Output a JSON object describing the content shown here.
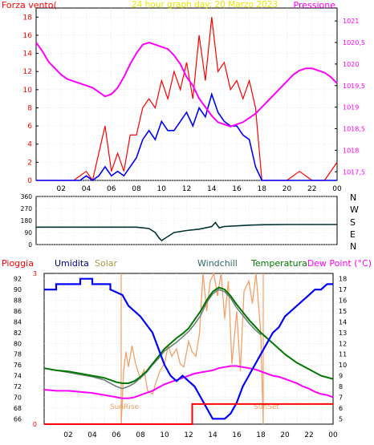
{
  "chart_data": [
    {
      "type": "line",
      "title": "24 hour graph day:  20 Marzo 2023",
      "left_axis_label": "Forza vento(",
      "right_axis_label": "Pressione",
      "x_ticks": [
        "02",
        "04",
        "06",
        "08",
        "10",
        "12",
        "14",
        "16",
        "18",
        "20",
        "22",
        "00"
      ],
      "y_left_ticks": [
        "0",
        "2",
        "4",
        "6",
        "8",
        "10",
        "12",
        "14",
        "16",
        "18"
      ],
      "y_left_range": [
        0,
        19
      ],
      "y_right_ticks": [
        "1017,5",
        "1018",
        "1018,5",
        "1019",
        "1019,5",
        "1020",
        "1020,5",
        "1021"
      ],
      "y_right_range": [
        1017.3,
        1021.3
      ],
      "colors": {
        "gust": "#ff0000",
        "wind": "#0000ff",
        "pressure": "#ff00ff"
      },
      "series": [
        {
          "axis": "right",
          "x": [
            0,
            0.5,
            1,
            1.5,
            2,
            2.5,
            3,
            3.5,
            4,
            4.5,
            5,
            5.5,
            6,
            6.5,
            7,
            7.5,
            8,
            8.5,
            9,
            9.5,
            10,
            10.5,
            11,
            11.5,
            12,
            12.5,
            13,
            13.5,
            14,
            14.5,
            15,
            15.5,
            16,
            16.5,
            17,
            17.5,
            18,
            18.5,
            19,
            19.5,
            20,
            20.5,
            21,
            21.5,
            22,
            22.5,
            23,
            23.5,
            24
          ],
          "y": [
            1020.5,
            1020.3,
            1020.05,
            1019.9,
            1019.75,
            1019.65,
            1019.6,
            1019.55,
            1019.5,
            1019.45,
            1019.35,
            1019.25,
            1019.3,
            1019.45,
            1019.7,
            1020.0,
            1020.25,
            1020.45,
            1020.5,
            1020.45,
            1020.4,
            1020.35,
            1020.2,
            1020.0,
            1019.7,
            1019.5,
            1019.2,
            1019.0,
            1018.8,
            1018.65,
            1018.6,
            1018.55,
            1018.6,
            1018.65,
            1018.75,
            1018.85,
            1019.0,
            1019.15,
            1019.3,
            1019.45,
            1019.6,
            1019.75,
            1019.85,
            1019.9,
            1019.9,
            1019.85,
            1019.8,
            1019.7,
            1019.55
          ]
        },
        {
          "axis": "left",
          "x": [
            0,
            1,
            2,
            3,
            3.5,
            4,
            4.5,
            5,
            5.5,
            6,
            6.5,
            7,
            7.5,
            8,
            8.5,
            9,
            9.5,
            10,
            10.5,
            11,
            11.5,
            12,
            12.5,
            13,
            13.5,
            14,
            14.5,
            15,
            15.5,
            16,
            16.5,
            17,
            17.5,
            18,
            19,
            20,
            21,
            22,
            23,
            24
          ],
          "y": [
            0,
            0,
            0,
            0,
            0,
            0.5,
            0,
            0.5,
            1.5,
            0.5,
            1,
            0.5,
            1.5,
            2.5,
            4.5,
            5.5,
            4.5,
            6.5,
            5.5,
            5.5,
            6.5,
            7.5,
            6,
            8,
            7,
            9.5,
            7.5,
            6.5,
            6,
            6,
            5,
            4.5,
            1.5,
            0,
            0,
            0,
            0,
            0,
            0,
            0
          ]
        },
        {
          "axis": "left",
          "x": [
            0,
            1,
            2,
            3,
            4,
            4.5,
            5,
            5.5,
            6,
            6.5,
            7,
            7.5,
            8,
            8.5,
            9,
            9.5,
            10,
            10.5,
            11,
            11.5,
            12,
            12.5,
            13,
            13.5,
            14,
            14.5,
            15,
            15.5,
            16,
            16.5,
            17,
            17.5,
            18,
            19,
            20,
            21,
            22,
            23,
            24
          ],
          "y": [
            0,
            0,
            0,
            0,
            1,
            0,
            3,
            6,
            1,
            3,
            1,
            5,
            5,
            8,
            9,
            8,
            11,
            9,
            12,
            10,
            13,
            9,
            16,
            11,
            18,
            12,
            13,
            10,
            11,
            9,
            11,
            8,
            0,
            0,
            0,
            1,
            0,
            0,
            2
          ]
        }
      ]
    },
    {
      "type": "line",
      "y_left_ticks": [
        "0",
        "90",
        "180",
        "270",
        "360"
      ],
      "y_left_range": [
        0,
        360
      ],
      "direction_labels": [
        "N",
        "W",
        "S",
        "E",
        "N"
      ],
      "colors": {
        "direction": "#003333"
      },
      "series": [
        {
          "x": [
            0,
            2,
            4,
            6,
            8,
            9,
            9.5,
            9.8,
            10,
            10.5,
            11,
            12,
            13,
            13.5,
            14,
            14.3,
            14.6,
            15,
            16,
            17,
            18,
            20,
            22,
            24
          ],
          "y": [
            130,
            130,
            130,
            130,
            130,
            120,
            90,
            50,
            30,
            60,
            90,
            105,
            115,
            125,
            135,
            165,
            125,
            135,
            140,
            145,
            148,
            150,
            150,
            150
          ]
        }
      ]
    },
    {
      "type": "line",
      "legend": [
        "Pioggia",
        "Umidita",
        "Solar",
        "Windchill",
        "Temperatura",
        "Dew Point (°C)"
      ],
      "y_left_ticks": [
        "66",
        "68",
        "70",
        "72",
        "74",
        "76",
        "78",
        "80",
        "82",
        "84",
        "86",
        "88",
        "90",
        "92"
      ],
      "y_left_range": [
        65,
        93
      ],
      "y_right_ticks": [
        "5",
        "6",
        "7",
        "8",
        "9",
        "10",
        "11",
        "12",
        "13",
        "14",
        "15",
        "16",
        "17",
        "18"
      ],
      "y_right_range": [
        4.5,
        18.5
      ],
      "rain_ticks": [
        "0",
        "3"
      ],
      "sunrise_label": "SunRise",
      "sunset_label": "SunSet",
      "sunrise_hour": 6.4,
      "sunset_hour": 18.2,
      "colors": {
        "rain": "#ff0000",
        "humidity": "#0000ff",
        "solar": "#f4a068",
        "windchill": "#708080",
        "temperature": "#007700",
        "dewpoint": "#ff00ff",
        "sun": "#f4a068"
      },
      "series": [
        {
          "axis": "rain",
          "x": [
            0,
            12.3,
            12.3,
            24
          ],
          "y": [
            0,
            0,
            0.4,
            0.4
          ]
        },
        {
          "axis": "left",
          "x": [
            0,
            1,
            1,
            3,
            3,
            4,
            4,
            5.5,
            5.5,
            6.5,
            7,
            8,
            9,
            9.5,
            10,
            10.5,
            11,
            11.5,
            12,
            12.5,
            13,
            13.5,
            14,
            14.5,
            15,
            15.5,
            16,
            16.5,
            17,
            17.5,
            18,
            18.5,
            19,
            19.5,
            20,
            20.5,
            21,
            21.5,
            22,
            22.5,
            23,
            23.5,
            24
          ],
          "y": [
            90,
            90,
            91,
            91,
            92,
            92,
            91,
            91,
            90,
            89,
            87,
            85,
            82,
            79,
            76,
            74,
            73,
            74,
            73,
            72,
            70,
            68,
            66,
            66,
            66,
            67,
            69,
            72,
            74,
            76,
            78,
            80,
            82,
            83,
            85,
            86,
            87,
            88,
            89,
            90,
            90,
            91,
            91
          ]
        },
        {
          "axis": "right",
          "x": [
            0,
            1,
            2,
            3,
            4,
            5,
            5.5,
            6,
            6.5,
            7,
            7.5,
            8,
            8.5,
            9,
            9.5,
            10,
            10.5,
            11,
            11.5,
            12,
            12.5,
            13,
            13.5,
            14,
            14.5,
            15,
            15.5,
            16,
            16.5,
            17,
            17.5,
            18,
            19,
            20,
            21,
            22,
            23,
            24
          ],
          "y": [
            9.7,
            9.5,
            9.4,
            9.2,
            9.0,
            8.8,
            8.6,
            8.4,
            8.3,
            8.3,
            8.5,
            8.9,
            9.4,
            10.1,
            10.8,
            11.5,
            12.0,
            12.5,
            12.9,
            13.4,
            14.2,
            15.0,
            16.0,
            16.8,
            17.2,
            17.0,
            16.4,
            15.6,
            14.9,
            14.2,
            13.6,
            13.0,
            12.0,
            11.0,
            10.2,
            9.6,
            9.0,
            8.7
          ]
        },
        {
          "axis": "right",
          "x": [
            0,
            1,
            2,
            3,
            4,
            5,
            5.5,
            6,
            6.5,
            7,
            7.5,
            8,
            8.5,
            9,
            9.5,
            10,
            10.5,
            11,
            11.5,
            12,
            12.5,
            13,
            13.5,
            14,
            14.5,
            15,
            15.5,
            16,
            16.5,
            17,
            17.5,
            18
          ],
          "y": [
            9.7,
            9.5,
            9.3,
            9.1,
            8.9,
            8.6,
            8.3,
            8.0,
            7.8,
            8.0,
            8.3,
            8.8,
            9.3,
            10.0,
            10.6,
            11.3,
            11.7,
            12.1,
            12.6,
            13.1,
            13.8,
            14.6,
            15.8,
            16.6,
            17.0,
            16.8,
            16.2,
            15.3,
            14.6,
            13.9,
            13.3,
            12.8
          ]
        },
        {
          "axis": "right",
          "x": [
            0,
            1,
            2,
            3,
            4,
            5,
            6,
            6.5,
            7,
            7.5,
            8,
            8.5,
            9,
            9.5,
            10,
            10.5,
            11,
            11.5,
            12,
            12.5,
            13,
            13.5,
            14,
            14.5,
            15,
            15.5,
            16,
            16.5,
            17,
            17.5,
            18,
            18.5,
            19,
            19.5,
            20,
            20.5,
            21,
            21.5,
            22,
            22.5,
            23,
            23.5,
            24
          ],
          "y": [
            7.7,
            7.6,
            7.6,
            7.5,
            7.4,
            7.2,
            7.0,
            6.9,
            6.9,
            7.0,
            7.2,
            7.4,
            7.6,
            7.9,
            8.2,
            8.4,
            8.6,
            8.8,
            9.0,
            9.2,
            9.3,
            9.4,
            9.5,
            9.7,
            9.8,
            9.9,
            9.9,
            9.8,
            9.7,
            9.6,
            9.4,
            9.2,
            9.0,
            8.9,
            8.7,
            8.5,
            8.3,
            8.0,
            7.8,
            7.5,
            7.3,
            7.2,
            7.0
          ]
        },
        {
          "axis": "solar",
          "x": [
            6.4,
            6.6,
            6.8,
            7.0,
            7.3,
            7.6,
            8.0,
            8.3,
            8.6,
            9.0,
            9.3,
            9.6,
            10.0,
            10.3,
            10.6,
            11.0,
            11.3,
            11.6,
            12.0,
            12.3,
            12.6,
            12.9,
            13.2,
            13.5,
            13.8,
            14.1,
            14.4,
            14.7,
            15.0,
            15.3,
            15.6,
            16.0,
            16.3,
            16.6,
            17.0,
            17.3,
            17.6,
            18.0,
            18.2
          ],
          "y": [
            0,
            35,
            48,
            38,
            52,
            40,
            30,
            36,
            22,
            20,
            28,
            35,
            40,
            52,
            45,
            50,
            40,
            38,
            55,
            48,
            45,
            60,
            100,
            75,
            95,
            100,
            85,
            100,
            70,
            95,
            40,
            75,
            35,
            88,
            95,
            80,
            100,
            60,
            0
          ]
        }
      ]
    }
  ]
}
